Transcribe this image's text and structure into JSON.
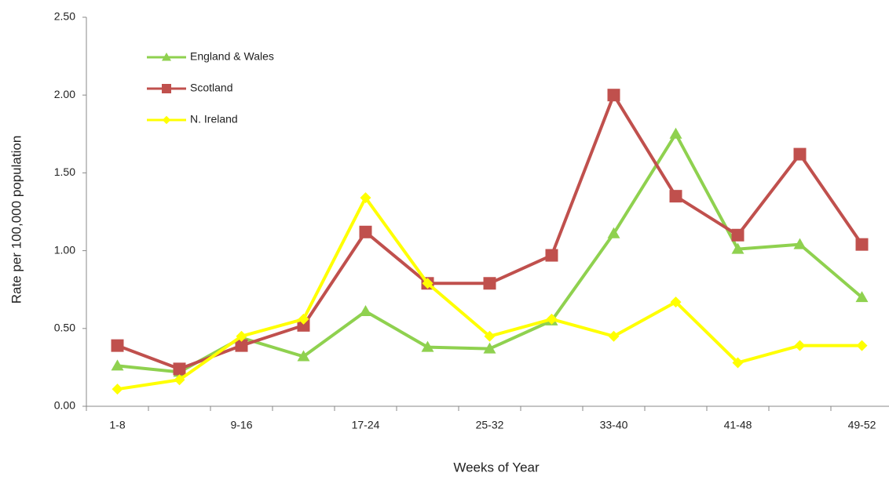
{
  "chart_data": {
    "type": "line",
    "xlabel": "Weeks of Year",
    "ylabel": "Rate per 100,000 population",
    "categories": [
      "1-8",
      null,
      "9-16",
      null,
      "17-24",
      null,
      "25-32",
      null,
      "33-40",
      null,
      "41-48",
      null,
      "49-52"
    ],
    "series": [
      {
        "name": "England & Wales",
        "color": "#8fd14f",
        "marker": "triangle",
        "values": [
          0.26,
          0.22,
          0.44,
          0.32,
          0.61,
          0.38,
          0.37,
          0.55,
          1.11,
          1.75,
          1.01,
          1.04,
          0.7
        ]
      },
      {
        "name": "Scotland",
        "color": "#c0504d",
        "marker": "square",
        "values": [
          0.39,
          0.24,
          0.39,
          0.52,
          1.12,
          0.79,
          0.79,
          0.97,
          2.0,
          1.35,
          1.1,
          1.62,
          1.04
        ]
      },
      {
        "name": "N. Ireland",
        "color": "#ffff00",
        "marker": "diamond",
        "values": [
          0.11,
          0.17,
          0.45,
          0.56,
          1.34,
          0.79,
          0.45,
          0.56,
          0.45,
          0.67,
          0.28,
          0.39,
          0.39
        ]
      }
    ],
    "ylim": [
      0,
      2.5
    ],
    "yticks": [
      {
        "value": 0,
        "label": "0.00"
      },
      {
        "value": 0.5,
        "label": "0.50"
      },
      {
        "value": 1,
        "label": "1.00"
      },
      {
        "value": 1.5,
        "label": "1.50"
      },
      {
        "value": 2,
        "label": "2.00"
      },
      {
        "value": 2.5,
        "label": "2.50"
      }
    ],
    "legend": "upper left"
  }
}
